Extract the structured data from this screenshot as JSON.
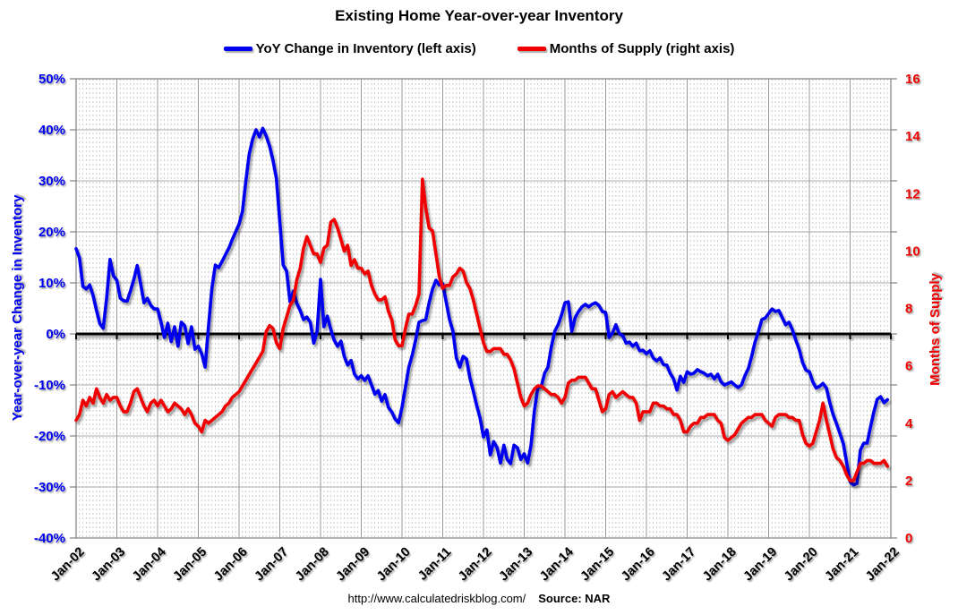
{
  "title": "Existing Home Year-over-year Inventory",
  "legend": [
    {
      "label": "YoY Change in Inventory (left axis)",
      "color": "#0000f0"
    },
    {
      "label": "Months of Supply (right axis)",
      "color": "#f00000"
    }
  ],
  "footer": {
    "url": "http://www.calculatedriskblog.com/",
    "source": "Source: NAR"
  },
  "chart_data": {
    "type": "line",
    "x_unit": "month",
    "x_start": "Jan-02",
    "x_end": "Dec-21",
    "x_tick_labels": [
      "Jan-02",
      "Jan-03",
      "Jan-04",
      "Jan-05",
      "Jan-06",
      "Jan-07",
      "Jan-08",
      "Jan-09",
      "Jan-10",
      "Jan-11",
      "Jan-12",
      "Jan-13",
      "Jan-14",
      "Jan-15",
      "Jan-16",
      "Jan-17",
      "Jan-18",
      "Jan-19",
      "Jan-20",
      "Jan-21",
      "Jan-22"
    ],
    "grid": {
      "horizontal_step_pct": 10,
      "vertical_year": "solid",
      "vertical_month": "dashed",
      "zero_line": "black"
    },
    "left_axis": {
      "title": "Year-over-year Change in Inventory",
      "color": "#0000f0",
      "range": [
        -40,
        50
      ],
      "ticks": [
        "50%",
        "40%",
        "30%",
        "20%",
        "10%",
        "0%",
        "-10%",
        "-20%",
        "-30%",
        "-40%"
      ]
    },
    "right_axis": {
      "title": "Months of Supply",
      "color": "#f00000",
      "range": [
        0,
        16
      ],
      "ticks": [
        "16",
        "14",
        "12",
        "10",
        "8",
        "6",
        "4",
        "2",
        "0"
      ]
    },
    "series": [
      {
        "name": "YoY Change in Inventory (left axis)",
        "axis": "left",
        "color": "#0000f0",
        "values": [
          16.7,
          14.9,
          9.3,
          8.8,
          9.6,
          7.5,
          4.6,
          2.0,
          1.1,
          7.0,
          14.6,
          11.4,
          10.5,
          7.0,
          6.5,
          6.4,
          8.4,
          10.7,
          13.4,
          9.9,
          6.1,
          7.0,
          5.6,
          4.9,
          4.9,
          2.3,
          -0.7,
          2.1,
          -1.5,
          1.4,
          -2.4,
          2.3,
          1.6,
          -1.9,
          1.4,
          -3.0,
          -2.4,
          -3.9,
          -6.5,
          1.5,
          9.0,
          13.5,
          13.0,
          14.2,
          15.5,
          16.8,
          18.5,
          20.0,
          21.5,
          24.0,
          30.0,
          35.3,
          38.2,
          40.0,
          38.6,
          40.3,
          38.8,
          36.8,
          34.0,
          30.5,
          22.0,
          13.5,
          12.3,
          6.3,
          8.4,
          6.0,
          4.6,
          2.8,
          3.3,
          2.3,
          -1.8,
          0.5,
          10.7,
          1.4,
          3.5,
          0.9,
          -1.2,
          -2.4,
          -1.4,
          -4.4,
          -6.1,
          -5.2,
          -7.9,
          -8.8,
          -8.2,
          -9.1,
          -8.2,
          -10.0,
          -11.8,
          -11.1,
          -13.2,
          -11.9,
          -14.4,
          -15.3,
          -16.7,
          -17.4,
          -14.4,
          -10.5,
          -6.5,
          -4.2,
          -1.2,
          2.3,
          2.6,
          2.8,
          6.1,
          8.8,
          10.5,
          9.6,
          9.8,
          6.3,
          2.8,
          0.5,
          -4.7,
          -6.5,
          -4.4,
          -4.9,
          -8.6,
          -11.2,
          -14.0,
          -16.5,
          -20.2,
          -18.8,
          -23.7,
          -21.1,
          -22.3,
          -25.3,
          -21.8,
          -24.6,
          -25.4,
          -21.8,
          -22.3,
          -24.6,
          -23.5,
          -25.3,
          -21.8,
          -15.0,
          -10.5,
          -10.3,
          -7.7,
          -6.5,
          -2.5,
          0.5,
          1.8,
          3.7,
          6.1,
          6.3,
          0.5,
          3.2,
          4.4,
          5.3,
          5.8,
          5.3,
          5.8,
          6.1,
          5.6,
          4.4,
          4.2,
          -0.7,
          0.2,
          1.8,
          0.0,
          -0.3,
          -1.8,
          -1.6,
          -2.4,
          -1.8,
          -3.3,
          -3.2,
          -3.9,
          -3.3,
          -4.7,
          -5.3,
          -4.7,
          -6.0,
          -6.1,
          -7.7,
          -8.8,
          -11.0,
          -8.3,
          -9.5,
          -7.4,
          -7.9,
          -7.7,
          -7.0,
          -7.4,
          -7.7,
          -8.2,
          -7.9,
          -8.8,
          -7.9,
          -9.4,
          -10.0,
          -9.7,
          -9.4,
          -10.0,
          -10.5,
          -10.0,
          -8.2,
          -6.8,
          -4.4,
          -1.6,
          0.5,
          2.8,
          3.1,
          4.0,
          4.9,
          4.4,
          4.6,
          3.2,
          1.8,
          2.3,
          0.8,
          -1.2,
          -3.0,
          -5.6,
          -7.1,
          -7.4,
          -9.4,
          -10.6,
          -10.3,
          -9.7,
          -10.6,
          -13.5,
          -15.8,
          -17.6,
          -19.5,
          -21.5,
          -25.3,
          -29.0,
          -29.6,
          -29.3,
          -22.8,
          -21.4,
          -21.4,
          -18.2,
          -15.3,
          -12.8,
          -12.3,
          -13.5,
          -12.9
        ]
      },
      {
        "name": "Months of Supply (right axis)",
        "axis": "right",
        "color": "#f00000",
        "values": [
          4.1,
          4.3,
          4.8,
          4.6,
          4.9,
          4.7,
          5.2,
          4.9,
          4.7,
          5.0,
          4.8,
          4.9,
          4.9,
          4.6,
          4.4,
          4.4,
          4.7,
          5.1,
          5.2,
          4.9,
          4.6,
          4.4,
          4.7,
          4.8,
          4.6,
          4.8,
          4.6,
          4.4,
          4.5,
          4.7,
          4.6,
          4.5,
          4.3,
          4.5,
          4.3,
          4.0,
          3.9,
          3.7,
          4.1,
          4.0,
          4.1,
          4.2,
          4.3,
          4.4,
          4.6,
          4.7,
          4.9,
          5.0,
          5.1,
          5.3,
          5.5,
          5.7,
          5.9,
          6.1,
          6.3,
          6.5,
          7.2,
          7.4,
          7.3,
          6.8,
          6.6,
          7.3,
          7.7,
          8.1,
          8.3,
          9.0,
          9.4,
          10.1,
          10.5,
          10.2,
          9.9,
          9.9,
          9.6,
          10.1,
          10.2,
          11.0,
          11.1,
          10.8,
          10.4,
          10.0,
          10.2,
          9.5,
          9.7,
          9.4,
          9.4,
          9.2,
          9.3,
          8.8,
          8.5,
          8.3,
          8.3,
          8.4,
          7.9,
          7.6,
          6.9,
          6.7,
          6.7,
          7.3,
          7.8,
          7.8,
          8.1,
          8.5,
          12.5,
          11.5,
          10.8,
          10.7,
          9.9,
          9.1,
          8.7,
          8.8,
          8.8,
          9.1,
          9.2,
          9.4,
          9.3,
          8.9,
          8.7,
          8.3,
          7.8,
          7.3,
          6.8,
          6.5,
          6.5,
          6.6,
          6.6,
          6.6,
          6.4,
          6.4,
          6.2,
          5.9,
          5.4,
          4.9,
          4.6,
          4.7,
          5.0,
          5.2,
          5.3,
          5.3,
          5.2,
          5.1,
          5.0,
          5.0,
          4.9,
          4.7,
          4.9,
          5.4,
          5.5,
          5.5,
          5.6,
          5.6,
          5.6,
          5.4,
          5.2,
          5.2,
          4.8,
          4.4,
          4.5,
          5.0,
          5.1,
          4.9,
          5.0,
          5.1,
          5.0,
          4.9,
          4.9,
          4.7,
          4.1,
          4.4,
          4.4,
          4.4,
          4.7,
          4.7,
          4.6,
          4.6,
          4.5,
          4.5,
          4.3,
          4.3,
          4.1,
          3.7,
          3.7,
          3.9,
          4.0,
          4.0,
          4.2,
          4.2,
          4.3,
          4.3,
          4.3,
          4.1,
          4.0,
          3.5,
          3.4,
          3.5,
          3.6,
          3.8,
          4.0,
          4.1,
          4.2,
          4.2,
          4.3,
          4.3,
          4.3,
          4.1,
          4.0,
          3.9,
          4.2,
          4.3,
          4.3,
          4.3,
          4.2,
          4.2,
          4.1,
          4.1,
          3.6,
          3.3,
          3.2,
          3.3,
          3.7,
          4.1,
          4.7,
          4.1,
          3.6,
          3.1,
          2.8,
          2.7,
          2.5,
          2.2,
          2.0,
          2.0,
          2.3,
          2.6,
          2.6,
          2.7,
          2.7,
          2.6,
          2.6,
          2.6,
          2.7,
          2.5
        ]
      }
    ]
  }
}
